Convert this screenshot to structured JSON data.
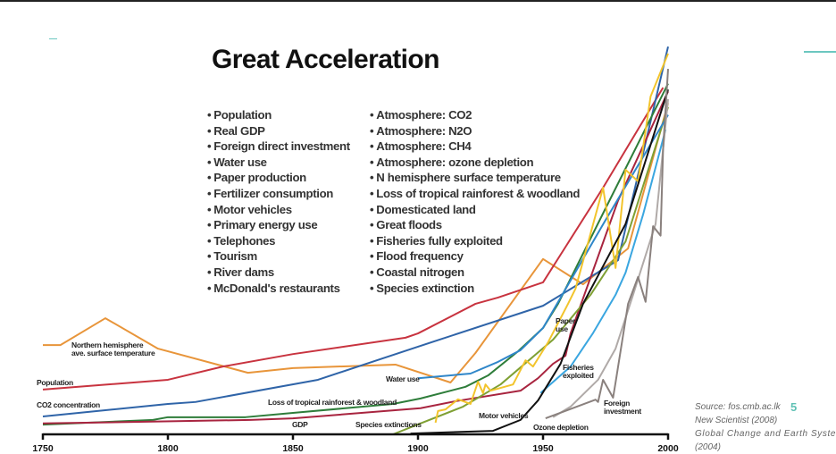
{
  "slide": {
    "title": "Great Acceleration",
    "bullets_left": [
      "Population",
      "Real GDP",
      "Foreign direct investment",
      "Water use",
      "Paper production",
      "Fertilizer consumption",
      "Motor vehicles",
      "Primary energy use",
      "Telephones",
      "Tourism",
      "River dams",
      "McDonald's restaurants"
    ],
    "bullets_right": [
      "Atmosphere: CO2",
      "Atmosphere: N2O",
      "Atmosphere: CH4",
      "Atmosphere: ozone depletion",
      "N hemisphere surface temperature",
      "Loss of tropical rainforest & woodland",
      "Domesticated land",
      "Great floods",
      "Fisheries fully exploited",
      "Flood frequency",
      "Coastal nitrogen",
      "Species extinction"
    ],
    "source_lines": [
      "Source: fos.cmb.ac.lk",
      "New Scientist (2008)",
      "Global Change and Earth System",
      "(2004)"
    ],
    "page_number": "5",
    "accent_color": "#5fc1b4"
  },
  "chart_data": {
    "type": "line",
    "title": "",
    "xlabel": "",
    "ylabel": "",
    "xlim": [
      1750,
      2000
    ],
    "ylim": [
      0,
      100
    ],
    "y_axis_shown": false,
    "grid": false,
    "x_ticks": [
      1750,
      1800,
      1850,
      1900,
      1950,
      2000
    ],
    "x_tick_labels": [
      "1750",
      "1800",
      "1850",
      "1900",
      "1950",
      "2000"
    ],
    "series": [
      {
        "name": "Northern hemisphere ave. surface temperature",
        "label_lines": [
          "Northern hemisphere",
          "ave. surface temperature"
        ],
        "color": "#e8953a",
        "points": [
          [
            1750,
            22.9
          ],
          [
            1757,
            22.9
          ],
          [
            1775,
            29.8
          ],
          [
            1796,
            22
          ],
          [
            1832,
            15.8
          ],
          [
            1850,
            17
          ],
          [
            1891,
            17.9
          ],
          [
            1913,
            13.3
          ],
          [
            1923,
            20.9
          ],
          [
            1950,
            45
          ],
          [
            1966,
            38.5
          ],
          [
            1984,
            47.7
          ],
          [
            2000,
            85
          ]
        ]
      },
      {
        "name": "Population",
        "label_lines": [
          "Population"
        ],
        "color": "#c8333f",
        "points": [
          [
            1750,
            11.5
          ],
          [
            1800,
            14
          ],
          [
            1822,
            17.4
          ],
          [
            1850,
            20.6
          ],
          [
            1895,
            24.8
          ],
          [
            1900,
            25.9
          ],
          [
            1923,
            33.5
          ],
          [
            1932,
            35.1
          ],
          [
            1950,
            39
          ],
          [
            1974,
            63.3
          ],
          [
            1998,
            89
          ]
        ]
      },
      {
        "name": "CO2 concentration",
        "label_lines": [
          "CO2 concentration"
        ],
        "color": "#2f64a8",
        "points": [
          [
            1750,
            4.6
          ],
          [
            1800,
            7.8
          ],
          [
            1811,
            8.3
          ],
          [
            1860,
            14
          ],
          [
            1900,
            22.5
          ],
          [
            1950,
            33
          ],
          [
            1980,
            44.7
          ],
          [
            2000,
            99.5
          ]
        ]
      },
      {
        "name": "Loss of tropical rainforest & woodland",
        "label_lines": [
          "Loss of tropical rainforest & woodland"
        ],
        "color": "#2e7d3a",
        "points": [
          [
            1750,
            2.5
          ],
          [
            1794,
            3.7
          ],
          [
            1800,
            4.4
          ],
          [
            1831,
            4.4
          ],
          [
            1850,
            5.5
          ],
          [
            1890,
            7.8
          ],
          [
            1901,
            9.2
          ],
          [
            1919,
            12.2
          ],
          [
            1928,
            15.1
          ],
          [
            1940,
            21.3
          ],
          [
            1950,
            27.3
          ],
          [
            1956,
            33.5
          ],
          [
            1975,
            58
          ],
          [
            2000,
            90
          ]
        ]
      },
      {
        "name": "GDP",
        "label_lines": [
          "GDP"
        ],
        "color": "#a8243f",
        "points": [
          [
            1750,
            2.8
          ],
          [
            1833,
            3.7
          ],
          [
            1850,
            4.1
          ],
          [
            1901,
            6.7
          ],
          [
            1915,
            8.5
          ],
          [
            1941,
            11.2
          ],
          [
            1948,
            14.4
          ],
          [
            1954,
            18.1
          ],
          [
            1959,
            20.2
          ],
          [
            1961,
            25.9
          ],
          [
            1980,
            60
          ],
          [
            2000,
            88
          ]
        ]
      },
      {
        "name": "Species extinctions",
        "label_lines": [
          "Species extinctions"
        ],
        "color": "#7fa034",
        "points": [
          [
            1890,
            0
          ],
          [
            1897,
            1.8
          ],
          [
            1918,
            7.1
          ],
          [
            1933,
            12.8
          ],
          [
            1954,
            24.3
          ],
          [
            1969,
            35.8
          ],
          [
            1983,
            49.5
          ],
          [
            2000,
            84
          ]
        ]
      },
      {
        "name": "Water use",
        "label_lines": [
          "Water use"
        ],
        "color": "#2f86c9",
        "points": [
          [
            1900,
            14.4
          ],
          [
            1921,
            15.6
          ],
          [
            1932,
            18.6
          ],
          [
            1941,
            21.6
          ],
          [
            1950,
            27.3
          ],
          [
            1975,
            55
          ],
          [
            2000,
            82
          ]
        ]
      },
      {
        "name": "Paper use",
        "label_lines": [
          "Paper",
          "use"
        ],
        "color": "#f2c42c",
        "points": [
          [
            1907,
            3
          ],
          [
            1908,
            6
          ],
          [
            1911,
            6.4
          ],
          [
            1916,
            9
          ],
          [
            1921,
            7.8
          ],
          [
            1924,
            13.5
          ],
          [
            1926,
            10.6
          ],
          [
            1927,
            12.8
          ],
          [
            1929,
            11.2
          ],
          [
            1938,
            12.8
          ],
          [
            1943,
            19
          ],
          [
            1946,
            17.4
          ],
          [
            1952,
            23.6
          ],
          [
            1960,
            33.5
          ],
          [
            1963,
            37.4
          ],
          [
            1974,
            63.3
          ],
          [
            1979,
            42.7
          ],
          [
            1983,
            67.9
          ],
          [
            1988,
            64.9
          ],
          [
            1993,
            86.7
          ],
          [
            2000,
            97.7
          ]
        ]
      },
      {
        "name": "Fisheries exploited",
        "label_lines": [
          "Fisheries",
          "exploited"
        ],
        "color": "#3aa6e0",
        "points": [
          [
            1949,
            10.6
          ],
          [
            1961,
            17.4
          ],
          [
            1970,
            26
          ],
          [
            1979,
            35.8
          ],
          [
            1983,
            41.5
          ],
          [
            1990,
            56.4
          ],
          [
            1999,
            78.2
          ]
        ]
      },
      {
        "name": "Motor vehicles",
        "label_lines": [
          "Motor vehicles"
        ],
        "color": "#111111",
        "points": [
          [
            1897,
            0.2
          ],
          [
            1930,
            0.9
          ],
          [
            1941,
            3.7
          ],
          [
            1948,
            8.7
          ],
          [
            1957,
            18.1
          ],
          [
            1966,
            33.5
          ],
          [
            1983,
            54
          ],
          [
            2000,
            88.5
          ]
        ]
      },
      {
        "name": "Ozone depletion",
        "label_lines": [
          "Ozone depletion"
        ],
        "color": "#b0aaa8",
        "points": [
          [
            1954,
            4.4
          ],
          [
            1961,
            7.1
          ],
          [
            1972,
            14
          ],
          [
            1979,
            22
          ],
          [
            1986,
            35.8
          ],
          [
            1995,
            54
          ],
          [
            2000,
            86
          ]
        ]
      },
      {
        "name": "Foreign investment",
        "label_lines": [
          "Foreign",
          "investment"
        ],
        "color": "#8a817e",
        "points": [
          [
            1951,
            4.1
          ],
          [
            1971,
            8.9
          ],
          [
            1972,
            8.3
          ],
          [
            1974,
            14
          ],
          [
            1978,
            9.4
          ],
          [
            1979,
            13.3
          ],
          [
            1984,
            33.5
          ],
          [
            1988,
            40.4
          ],
          [
            1991,
            34
          ],
          [
            1994,
            53.4
          ],
          [
            1997,
            51
          ],
          [
            1998,
            73.2
          ],
          [
            2000,
            93.8
          ]
        ]
      }
    ]
  }
}
